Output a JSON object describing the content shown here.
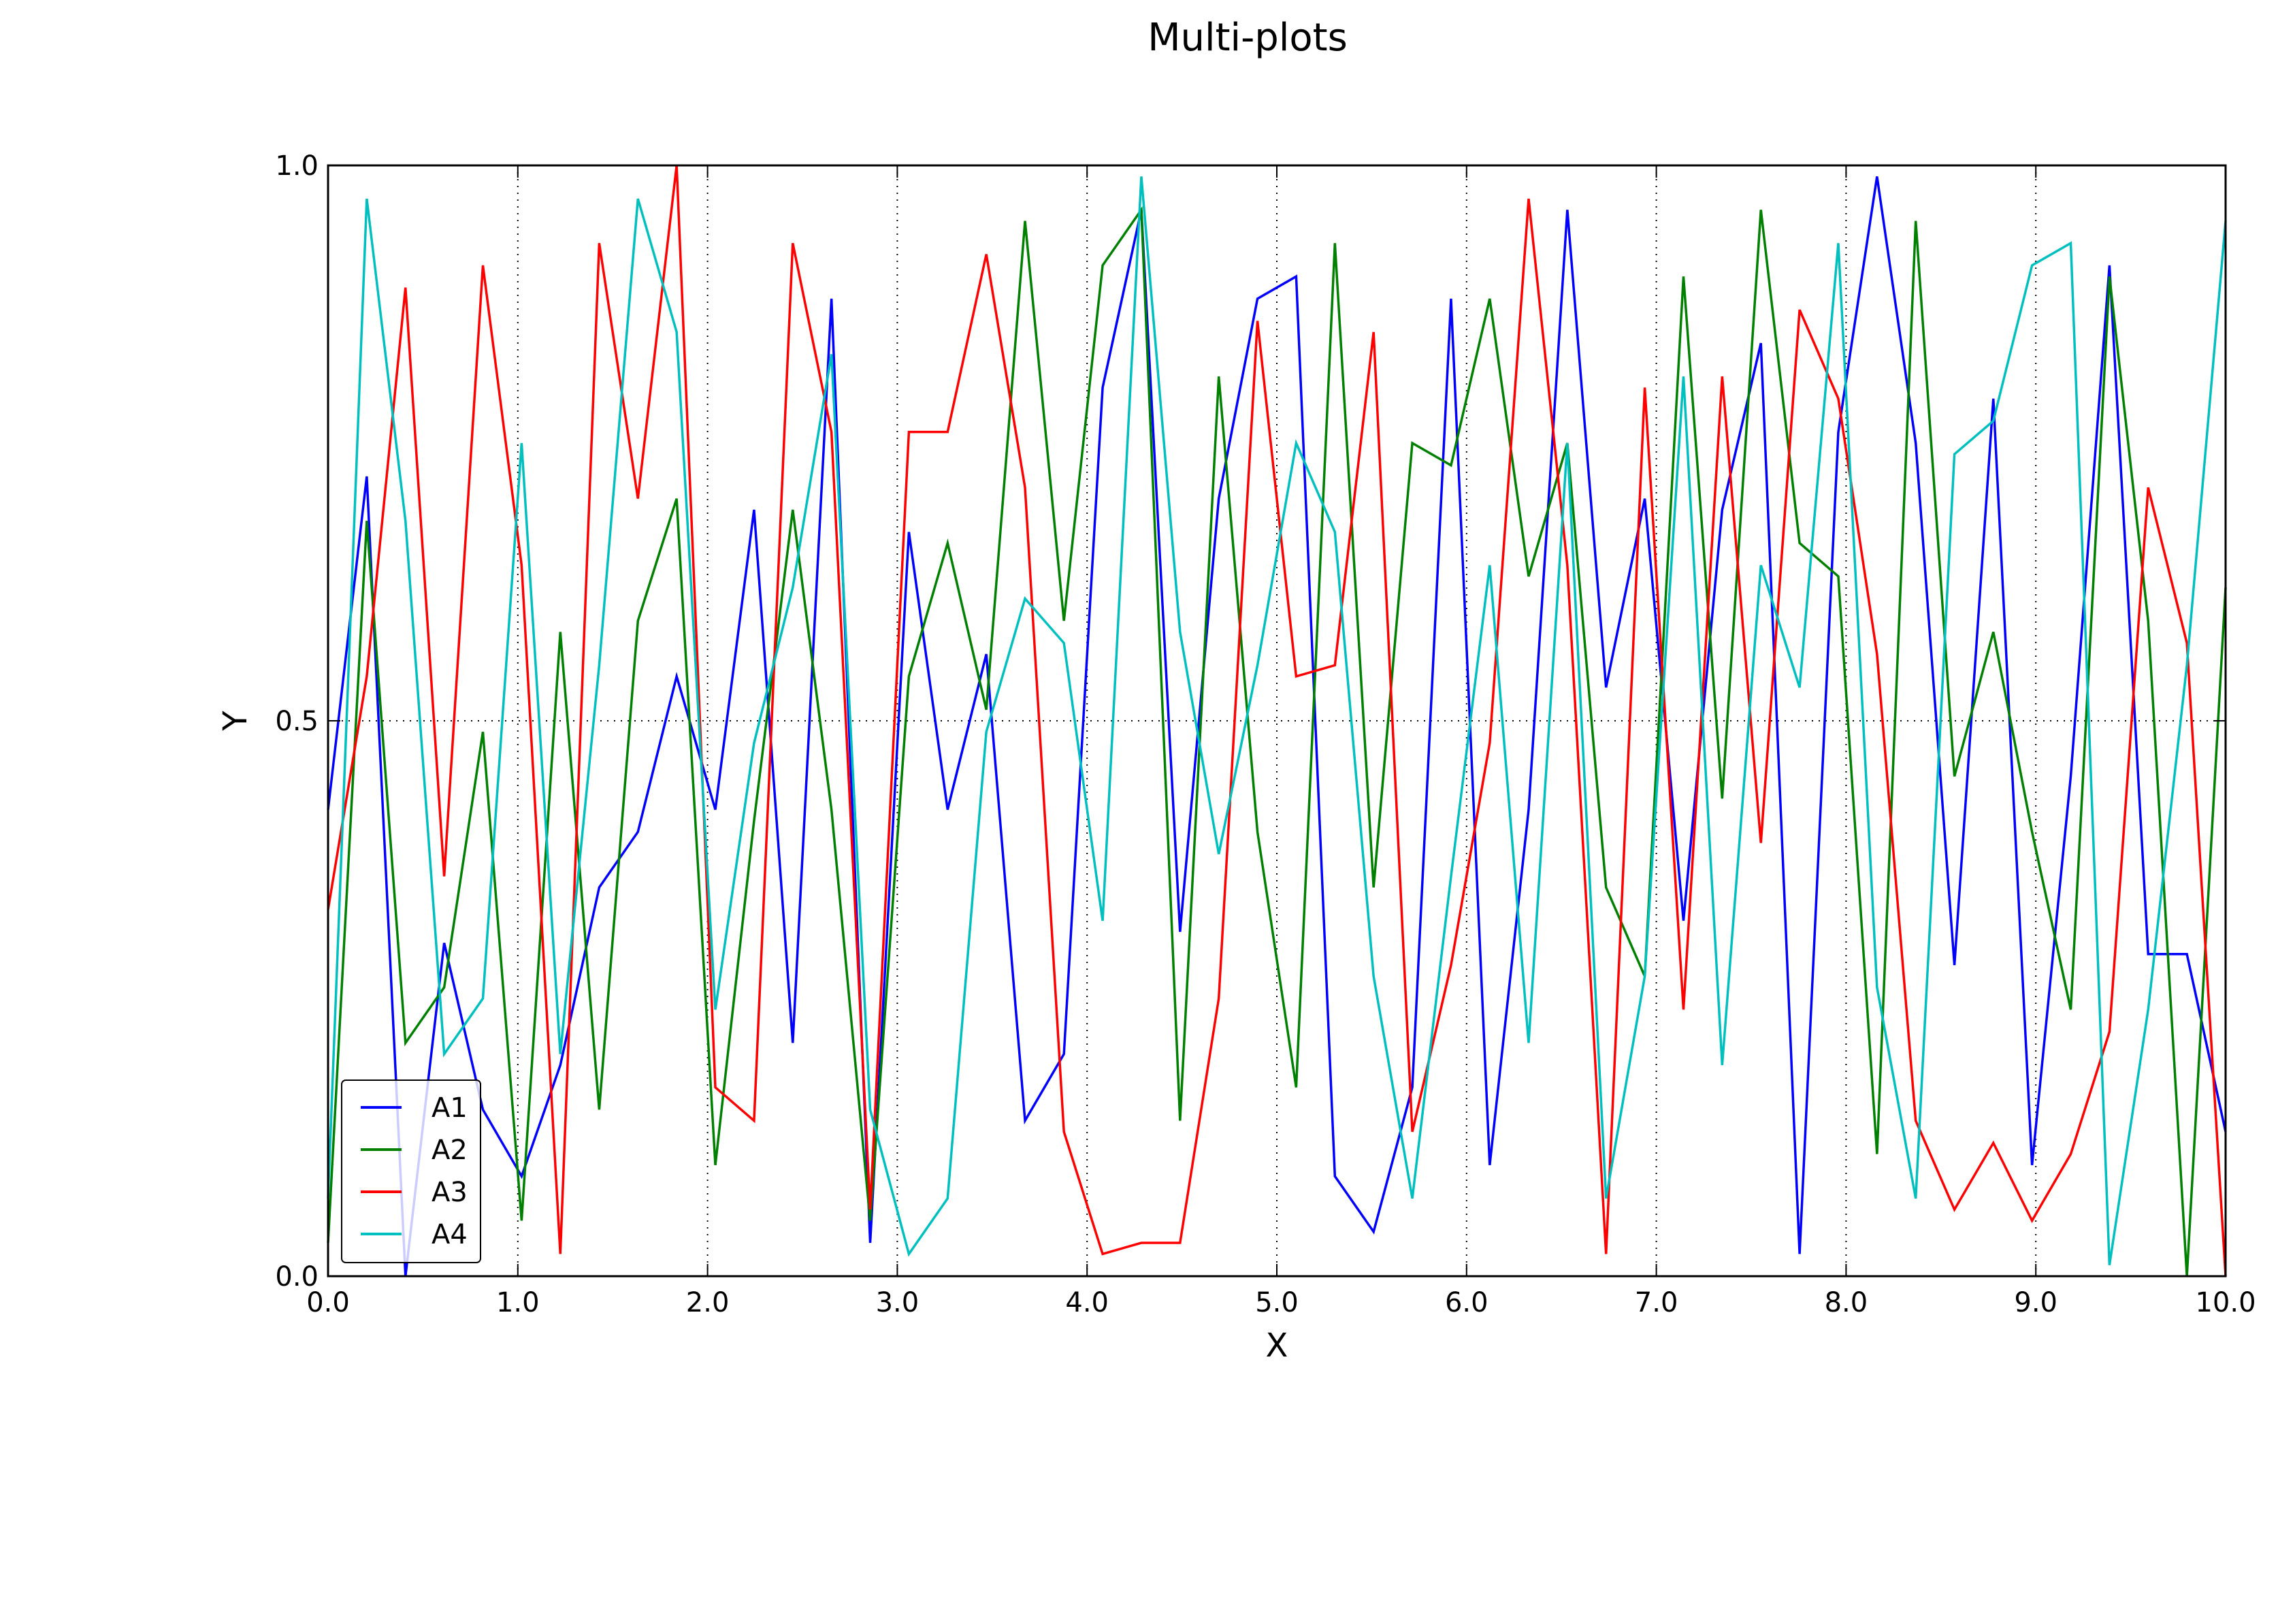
{
  "chart_data": {
    "type": "line",
    "title": "Multi-plots",
    "xlabel": "X",
    "ylabel": "Y",
    "xlim": [
      0.0,
      10.0
    ],
    "ylim": [
      0.0,
      1.0
    ],
    "xticks": [
      "0.0",
      "1.0",
      "2.0",
      "3.0",
      "4.0",
      "5.0",
      "6.0",
      "7.0",
      "8.0",
      "9.0",
      "10.0"
    ],
    "yticks": [
      "0.0",
      "0.5",
      "1.0"
    ],
    "grid": "dotted at x ticks and y = 0.5",
    "legend_position": "lower-left",
    "x": [
      0.0,
      0.204,
      0.408,
      0.612,
      0.816,
      1.02,
      1.224,
      1.429,
      1.633,
      1.837,
      2.041,
      2.245,
      2.449,
      2.653,
      2.857,
      3.061,
      3.265,
      3.469,
      3.673,
      3.878,
      4.082,
      4.286,
      4.49,
      4.694,
      4.898,
      5.102,
      5.306,
      5.51,
      5.714,
      5.918,
      6.122,
      6.327,
      6.531,
      6.735,
      6.939,
      7.143,
      7.347,
      7.551,
      7.755,
      7.959,
      8.163,
      8.367,
      8.571,
      8.776,
      8.98,
      9.184,
      9.388,
      9.592,
      9.796,
      10.0
    ],
    "series": [
      {
        "name": "A1",
        "color": "#0000ff",
        "values": [
          0.42,
          0.72,
          0.0,
          0.3,
          0.15,
          0.09,
          0.19,
          0.35,
          0.4,
          0.54,
          0.42,
          0.69,
          0.21,
          0.88,
          0.03,
          0.67,
          0.42,
          0.56,
          0.14,
          0.2,
          0.8,
          0.96,
          0.31,
          0.7,
          0.88,
          0.9,
          0.09,
          0.04,
          0.17,
          0.88,
          0.1,
          0.42,
          0.96,
          0.53,
          0.7,
          0.32,
          0.69,
          0.84,
          0.02,
          0.76,
          0.99,
          0.75,
          0.28,
          0.79,
          0.1,
          0.45,
          0.91,
          0.29,
          0.29,
          0.13
        ]
      },
      {
        "name": "A2",
        "color": "#008000",
        "values": [
          0.03,
          0.68,
          0.21,
          0.26,
          0.49,
          0.05,
          0.58,
          0.15,
          0.59,
          0.7,
          0.1,
          0.41,
          0.69,
          0.42,
          0.05,
          0.54,
          0.66,
          0.51,
          0.95,
          0.59,
          0.91,
          0.96,
          0.14,
          0.81,
          0.4,
          0.17,
          0.93,
          0.35,
          0.75,
          0.73,
          0.88,
          0.63,
          0.75,
          0.35,
          0.27,
          0.9,
          0.43,
          0.96,
          0.66,
          0.63,
          0.11,
          0.95,
          0.45,
          0.58,
          0.4,
          0.24,
          0.9,
          0.59,
          0.0,
          0.62
        ]
      },
      {
        "name": "A3",
        "color": "#ff0000",
        "values": [
          0.33,
          0.54,
          0.89,
          0.36,
          0.91,
          0.64,
          0.02,
          0.93,
          0.7,
          1.0,
          0.17,
          0.14,
          0.93,
          0.76,
          0.06,
          0.76,
          0.76,
          0.92,
          0.71,
          0.13,
          0.02,
          0.03,
          0.03,
          0.25,
          0.86,
          0.54,
          0.55,
          0.85,
          0.13,
          0.28,
          0.48,
          0.97,
          0.64,
          0.02,
          0.8,
          0.24,
          0.81,
          0.39,
          0.87,
          0.79,
          0.56,
          0.14,
          0.06,
          0.12,
          0.05,
          0.11,
          0.22,
          0.71,
          0.57,
          0.0
        ]
      },
      {
        "name": "A4",
        "color": "#00bfbf",
        "values": [
          0.07,
          0.97,
          0.68,
          0.2,
          0.25,
          0.75,
          0.2,
          0.55,
          0.97,
          0.85,
          0.24,
          0.48,
          0.62,
          0.83,
          0.15,
          0.02,
          0.07,
          0.49,
          0.61,
          0.57,
          0.32,
          0.99,
          0.58,
          0.38,
          0.55,
          0.75,
          0.67,
          0.27,
          0.07,
          0.36,
          0.64,
          0.21,
          0.75,
          0.07,
          0.27,
          0.81,
          0.19,
          0.64,
          0.53,
          0.93,
          0.26,
          0.07,
          0.74,
          0.77,
          0.91,
          0.93,
          0.01,
          0.24,
          0.55,
          0.95
        ]
      }
    ]
  }
}
